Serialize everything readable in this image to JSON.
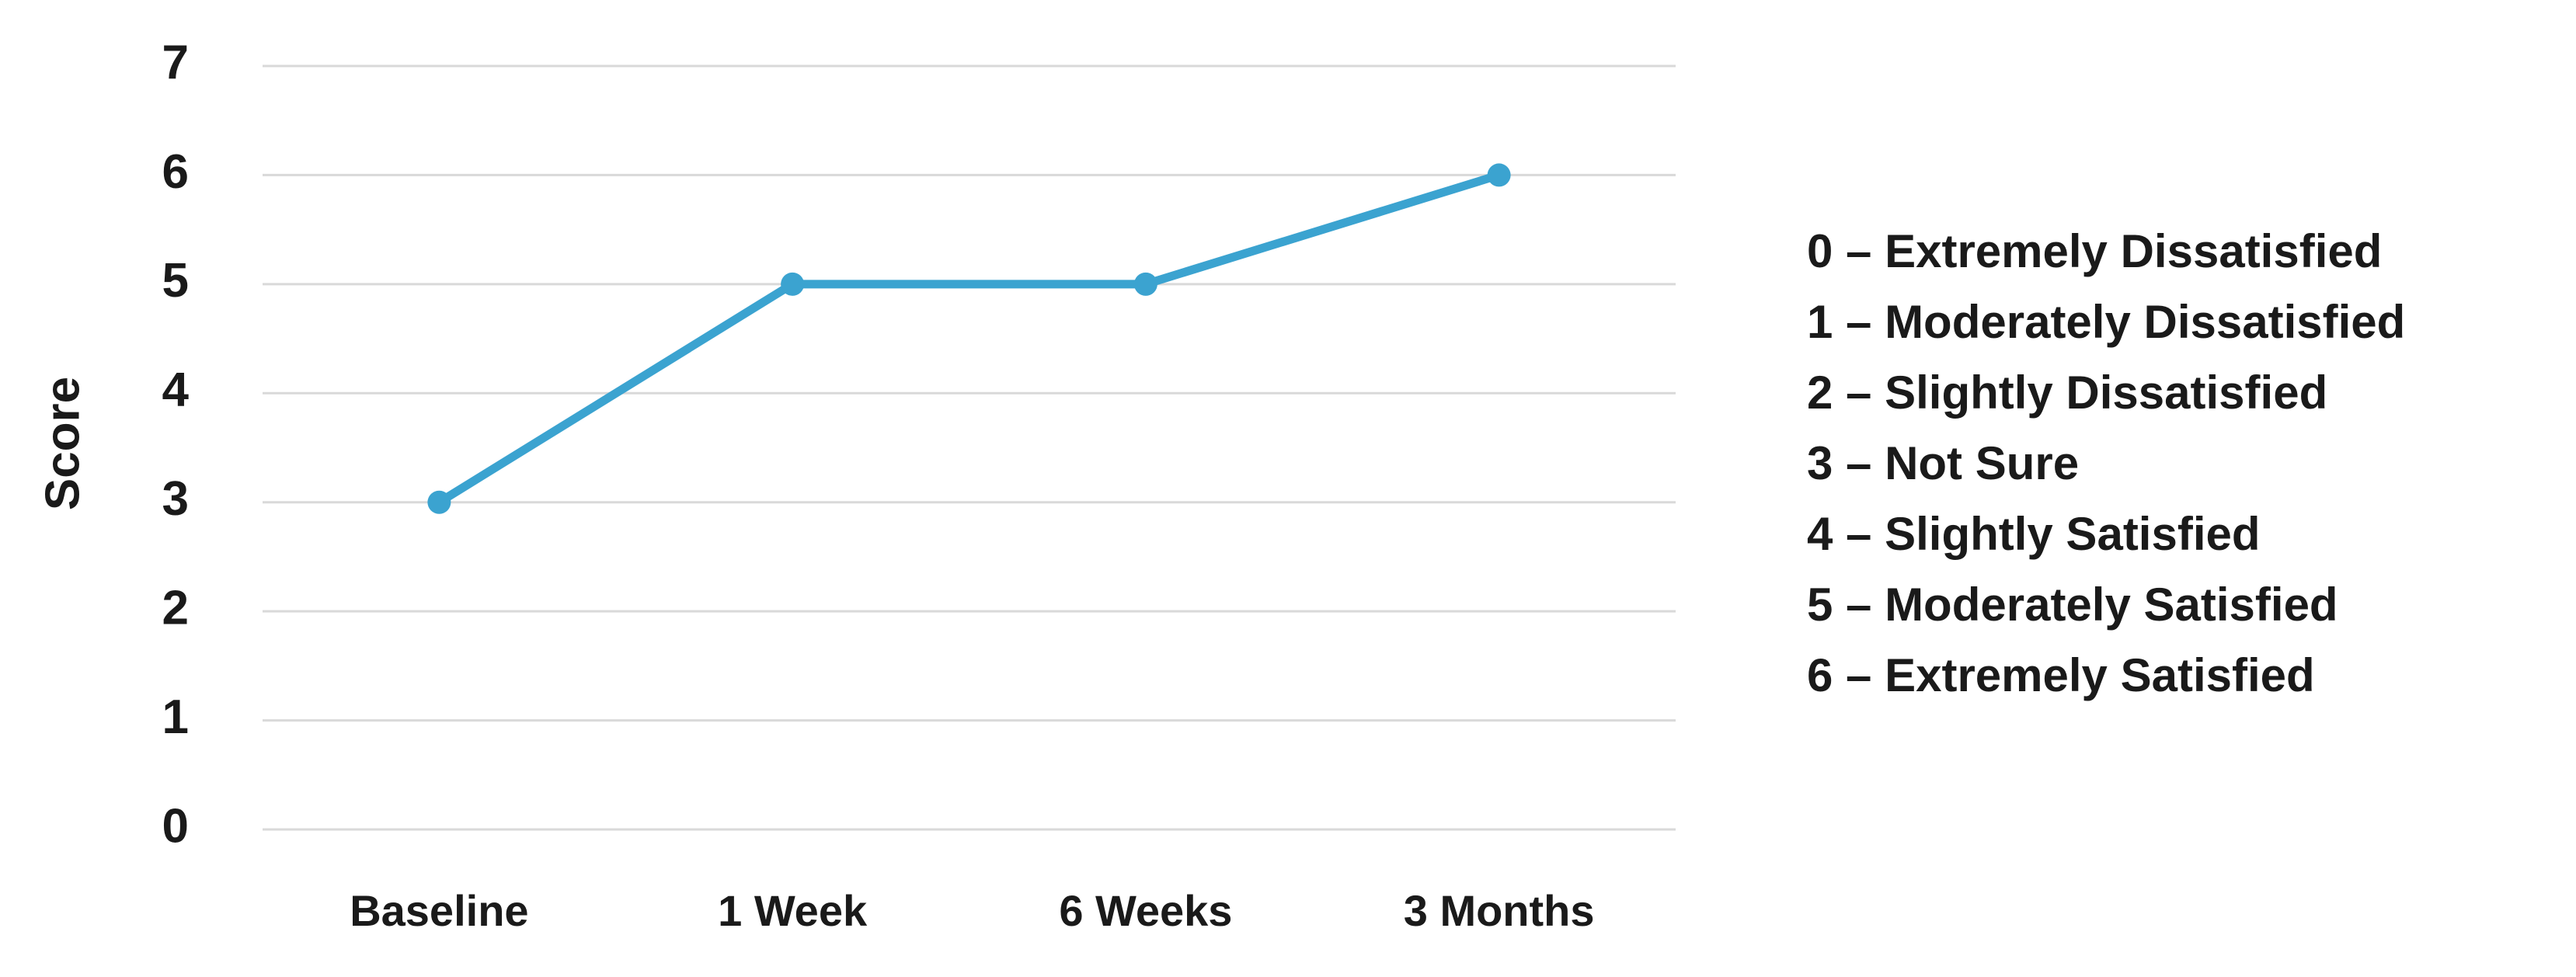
{
  "chart_data": {
    "type": "line",
    "y_label": "Score",
    "categories": [
      "Baseline",
      "1 Week",
      "6 Weeks",
      "3 Months"
    ],
    "series": [
      {
        "values": [
          3,
          5,
          5,
          6
        ],
        "color": "#3ba3d0"
      }
    ],
    "ylim": [
      0,
      7
    ],
    "yticks": [
      0,
      1,
      2,
      3,
      4,
      5,
      6,
      7
    ],
    "grid": true,
    "annotations": [
      "0 – Extremely Dissatisfied",
      "1 – Moderately Dissatisfied",
      "2 – Slightly Dissatisfied",
      "3 – Not Sure",
      "4 – Slightly Satisfied",
      "5 – Moderately Satisfied",
      "6 – Extremely Satisfied"
    ]
  }
}
